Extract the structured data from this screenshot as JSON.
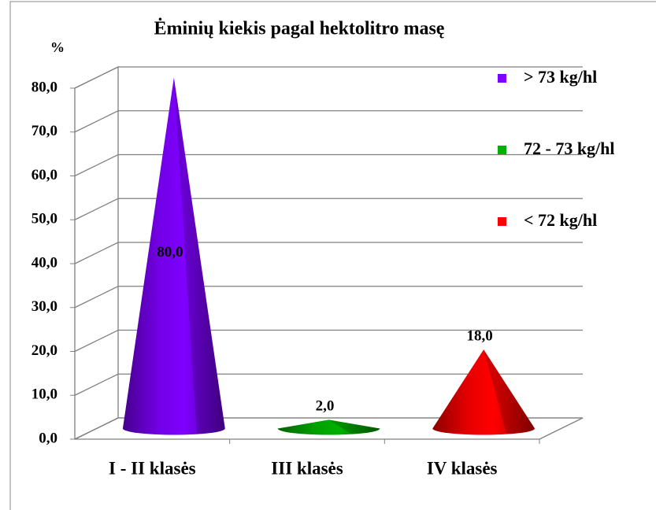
{
  "chart_data": {
    "type": "cone",
    "title": "Ėminių kiekis pagal hektolitro masę",
    "y_label": "%",
    "categories": [
      "I - II klasės",
      "III klasės",
      "IV klasės"
    ],
    "series": [
      {
        "name": "> 73 kg/hl",
        "color": "#7f00ff",
        "values": [
          80,
          null,
          null
        ],
        "value_labels": [
          "80,0",
          null,
          null
        ]
      },
      {
        "name": "72 - 73 kg/hl",
        "color": "#00b000",
        "values": [
          null,
          2,
          null
        ],
        "value_labels": [
          null,
          "2,0",
          null
        ]
      },
      {
        "name": "< 72 kg/hl",
        "color": "#ff0000",
        "values": [
          null,
          null,
          18
        ],
        "value_labels": [
          null,
          null,
          "18,0"
        ]
      }
    ],
    "ylim": [
      0,
      80
    ],
    "yticks": [
      {
        "value": 0,
        "label": "0,0"
      },
      {
        "value": 10,
        "label": "10,0"
      },
      {
        "value": 20,
        "label": "20,0"
      },
      {
        "value": 30,
        "label": "30,0"
      },
      {
        "value": 40,
        "label": "40,0"
      },
      {
        "value": 50,
        "label": "50,0"
      },
      {
        "value": 60,
        "label": "60,0"
      },
      {
        "value": 70,
        "label": "70,0"
      },
      {
        "value": 80,
        "label": "80,0"
      }
    ],
    "grid": true,
    "legend": "right"
  }
}
